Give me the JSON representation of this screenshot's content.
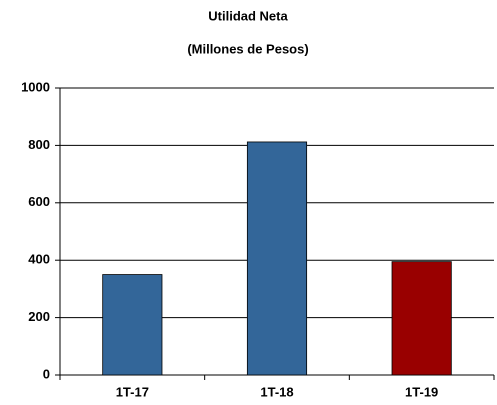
{
  "chart_data": {
    "type": "bar",
    "title": "Utilidad Neta",
    "subtitle": "(Millones de Pesos)",
    "categories": [
      "1T-17",
      "1T-18",
      "1T-19"
    ],
    "values": [
      350,
      812,
      395
    ],
    "colors": [
      "#336699",
      "#336699",
      "#990000"
    ],
    "ylim": [
      0,
      1000
    ],
    "yticks": [
      0,
      200,
      400,
      600,
      800,
      1000
    ],
    "grid": true
  }
}
